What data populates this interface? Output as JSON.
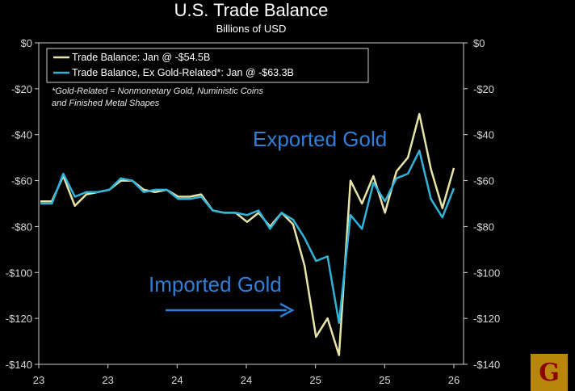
{
  "chart_data": {
    "type": "line",
    "title": "U.S. Trade Balance",
    "subtitle": "Billions of USD",
    "ylim": [
      -140,
      0
    ],
    "yticks": [
      0,
      -20,
      -40,
      -60,
      -80,
      -100,
      -120,
      -140
    ],
    "ytick_labels": [
      "$0",
      "-$20",
      "-$40",
      "-$60",
      "-$80",
      "-$100",
      "-$120",
      "-$140"
    ],
    "ytick_labels_right": [
      "$0",
      "-$20",
      "-$40",
      "-$60",
      "-$80",
      "-$100",
      "-$120",
      "-$140"
    ],
    "x_tick_labels": [
      "23",
      "23",
      "24",
      "24",
      "25",
      "25",
      "26"
    ],
    "legend_position": "top-left",
    "note": [
      "*Gold-Related = Nonmonetary Gold, Nuministic Coins",
      "and Finished Metal Shapes"
    ],
    "annotations": {
      "exported": "Exported Gold",
      "imported": "Imported Gold"
    },
    "series": [
      {
        "name": "Trade Balance: Jan @ -$54.5B",
        "color": "#e8e4a8",
        "values": [
          -69,
          -69,
          -58,
          -71,
          -66,
          -65,
          -64,
          -60,
          -60,
          -64,
          -65,
          -64,
          -67,
          -67,
          -66,
          -73,
          -74,
          -74,
          -78,
          -74,
          -80,
          -74,
          -79,
          -97,
          -128,
          -120,
          -136,
          -60,
          -70,
          -58,
          -74,
          -56,
          -50,
          -31,
          -55,
          -72,
          -54.5
        ]
      },
      {
        "name": "Trade Balance, Ex Gold-Related*: Jan @ -$63.3B",
        "color": "#2fb3d9",
        "values": [
          -70,
          -70,
          -57,
          -67,
          -65,
          -65,
          -64,
          -59,
          -60,
          -65,
          -64,
          -64,
          -68,
          -68,
          -67,
          -73,
          -74,
          -74,
          -75,
          -73,
          -81,
          -74,
          -77,
          -85,
          -95,
          -93,
          -122,
          -75,
          -81,
          -61,
          -69,
          -59,
          -57,
          -47,
          -68,
          -76,
          -63.3
        ]
      }
    ]
  },
  "logo": {
    "letter": "G"
  }
}
